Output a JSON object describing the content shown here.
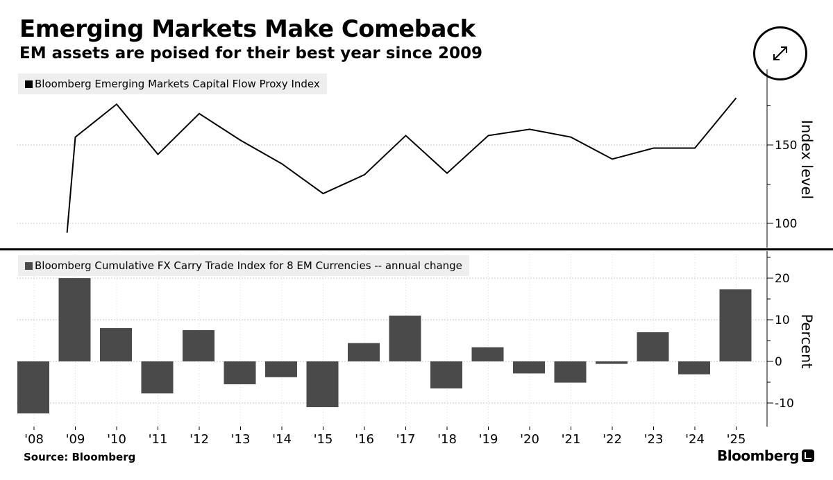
{
  "title": "Emerging Markets Make Comeback",
  "subtitle": "EM assets are poised for their best year since 2009",
  "source": "Source: Bloomberg",
  "brand": "Bloomberg",
  "expand_icon": "expand-icon",
  "colors": {
    "line": "#000000",
    "bar": "#4a4a4a",
    "grid": "#c8c8c8",
    "legend_bg": "#eeeeee"
  },
  "chart_data": [
    {
      "type": "line",
      "title": "Bloomberg Emerging Markets Capital Flow Proxy Index",
      "ylabel": "Index level",
      "ylim": [
        85,
        200
      ],
      "yticks": [
        100,
        150
      ],
      "categories": [
        "'08",
        "'09",
        "'10",
        "'11",
        "'12",
        "'13",
        "'14",
        "'15",
        "'16",
        "'17",
        "'18",
        "'19",
        "'20",
        "'21",
        "'22",
        "'23",
        "'24",
        "'25"
      ],
      "x": [
        2008.8,
        2009.0,
        2010.0,
        2011.0,
        2012.0,
        2013.0,
        2014.0,
        2015.0,
        2016.0,
        2017.0,
        2018.0,
        2019.0,
        2020.0,
        2021.0,
        2022.0,
        2023.0,
        2024.0,
        2025.0
      ],
      "values": [
        94,
        155,
        176,
        144,
        170,
        153,
        138,
        119,
        131,
        156,
        132,
        156,
        160,
        155,
        141,
        148,
        148,
        180
      ],
      "legend": "Bloomberg Emerging Markets Capital Flow Proxy Index"
    },
    {
      "type": "bar",
      "title": "Bloomberg Cumulative FX Carry Trade Index for 8 EM Currencies -- annual change",
      "ylabel": "Percent",
      "ylim": [
        -15,
        26
      ],
      "yticks": [
        -10,
        0,
        10,
        20
      ],
      "categories": [
        "'08",
        "'09",
        "'10",
        "'11",
        "'12",
        "'13",
        "'14",
        "'15",
        "'16",
        "'17",
        "'18",
        "'19",
        "'20",
        "'21",
        "'22",
        "'23",
        "'24",
        "'25"
      ],
      "values": [
        -12.5,
        20,
        8,
        -7.7,
        7.5,
        -5.5,
        -3.8,
        -11,
        4.4,
        11,
        -6.5,
        3.4,
        -2.9,
        -5.1,
        -0.6,
        7,
        -3.1,
        17.3
      ],
      "legend": "Bloomberg Cumulative FX Carry Trade Index for 8 EM Currencies -- annual change"
    }
  ]
}
